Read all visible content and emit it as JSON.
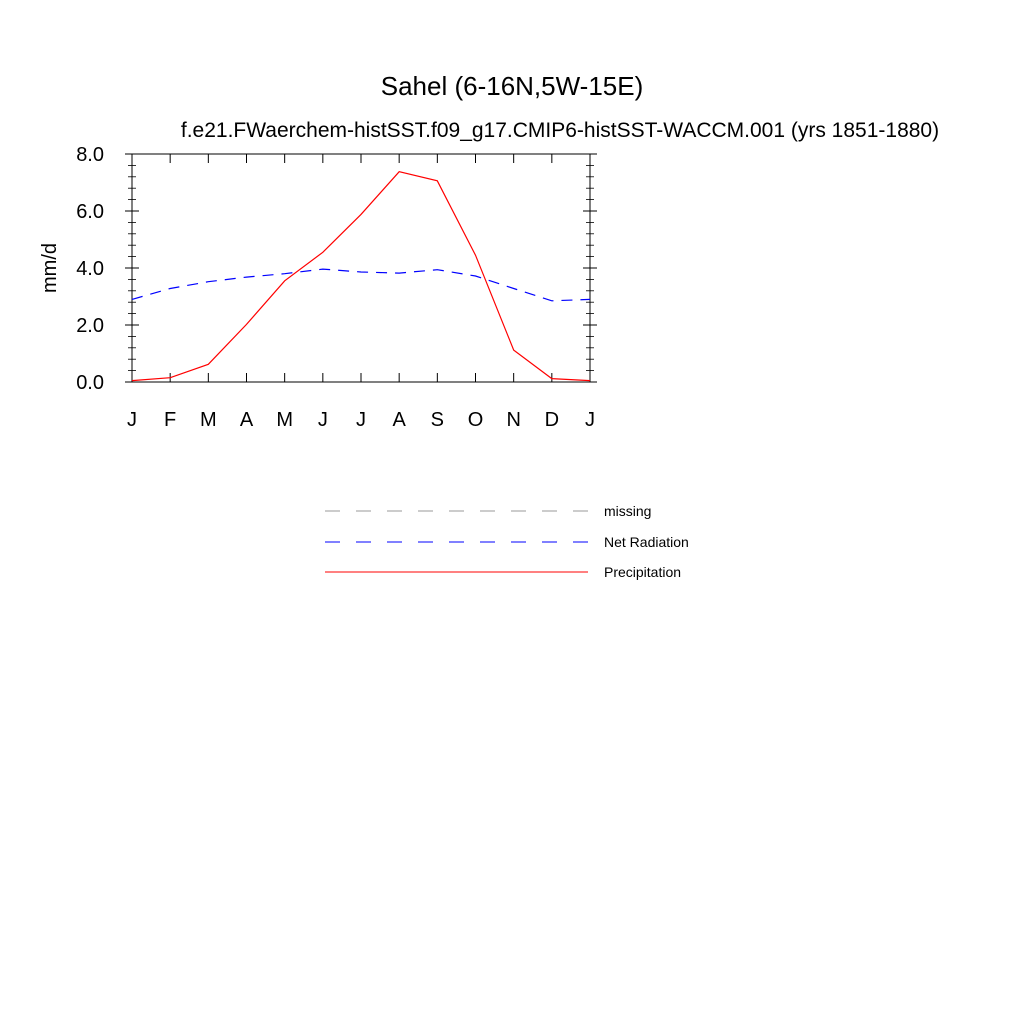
{
  "chart_data": {
    "type": "line",
    "title": "Sahel (6-16N,5W-15E)",
    "subtitle": "f.e21.FWaerchem-histSST.f09_g17.CMIP6-histSST-WACCM.001 (yrs 1851-1880)",
    "ylabel": "mm/d",
    "xlabel": "",
    "categories": [
      "J",
      "F",
      "M",
      "A",
      "M",
      "J",
      "J",
      "A",
      "S",
      "O",
      "N",
      "D",
      "J"
    ],
    "ylim": [
      0,
      8
    ],
    "yticks": [
      "0.0",
      "2.0",
      "4.0",
      "6.0",
      "8.0"
    ],
    "grid": false,
    "legend_position": "bottom-center",
    "series": [
      {
        "name": "Net Radiation",
        "color": "#0000ff",
        "dash": "dashed",
        "values": [
          2.9,
          3.28,
          3.52,
          3.68,
          3.8,
          3.96,
          3.86,
          3.82,
          3.94,
          3.72,
          3.28,
          2.85,
          2.9
        ]
      },
      {
        "name": "Precipitation",
        "color": "#ff0000",
        "dash": "solid",
        "values": [
          0.05,
          0.15,
          0.62,
          2.02,
          3.55,
          4.55,
          5.88,
          7.38,
          7.06,
          4.45,
          1.12,
          0.12,
          0.05
        ]
      }
    ],
    "legend": [
      {
        "label": "missing",
        "color": "#999999",
        "dash": "dashed"
      },
      {
        "label": "Net Radiation",
        "color": "#0000ff",
        "dash": "dashed"
      },
      {
        "label": "Precipitation",
        "color": "#ff0000",
        "dash": "solid"
      }
    ]
  }
}
